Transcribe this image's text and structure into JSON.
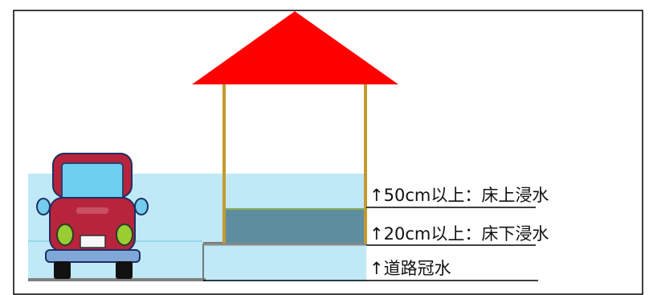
{
  "labels": {
    "above_floor": "↑50cm以上：床上浸水",
    "below_floor": "↑20cm以上：床下浸水",
    "road": "↑道路冠水"
  },
  "colors": {
    "roof": "#ff0000",
    "house_frame": "#c49a2c",
    "water_light": "#bfe9f7",
    "water_dark": "#5d8ea0",
    "car_body": "#b7243b",
    "car_window": "#6ecff0",
    "car_lamp": "#9acd32",
    "road_line": "#777777"
  },
  "icons": {
    "car": "car-icon",
    "house": "house-icon"
  }
}
